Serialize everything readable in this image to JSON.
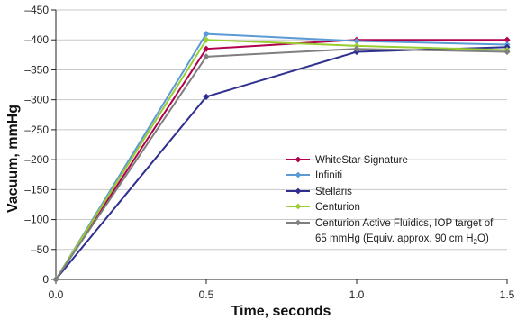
{
  "chart_data": {
    "type": "line",
    "xlabel": "Time, seconds",
    "ylabel": "Vacuum, mmHg",
    "x": [
      0.0,
      0.5,
      1.0,
      1.5
    ],
    "x_ticks": [
      "0.0",
      "0.5",
      "1.0",
      "1.5"
    ],
    "xlim": [
      0,
      1.5
    ],
    "ylim": [
      0,
      -450
    ],
    "y_ticks": [
      0,
      -50,
      -100,
      -150,
      -200,
      -250,
      -300,
      -350,
      -400,
      -450
    ],
    "grid": "horizontal",
    "legend_position": "right",
    "series": [
      {
        "name": "WhiteStar Signature",
        "color": "#b0004e",
        "values": [
          0,
          -385,
          -400,
          -400
        ]
      },
      {
        "name": "Infiniti",
        "color": "#5b9bd5",
        "values": [
          0,
          -410,
          -398,
          -392
        ]
      },
      {
        "name": "Stellaris",
        "color": "#2e2f8f",
        "values": [
          0,
          -305,
          -380,
          -388
        ]
      },
      {
        "name": "Centurion",
        "color": "#9acd32",
        "values": [
          0,
          -400,
          -390,
          -383
        ]
      },
      {
        "name": "Centurion Active Fluidics, IOP target of",
        "name_line2": "65 mmHg (Equiv. approx. 90 cm H",
        "name_sub": "2",
        "name_end": "O)",
        "color": "#7f7f7f",
        "values": [
          0,
          -372,
          -385,
          -380
        ]
      }
    ]
  }
}
